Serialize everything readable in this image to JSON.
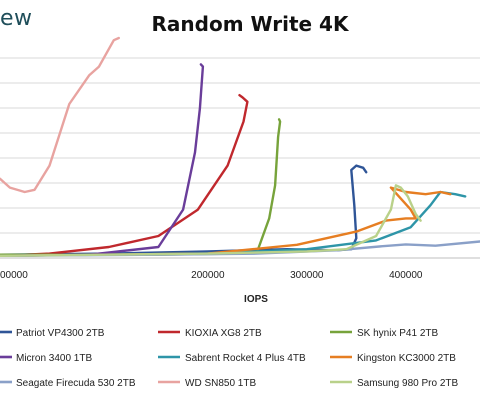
{
  "logo": {
    "text": "ew"
  },
  "chart_data": {
    "type": "line",
    "title": "Random Write 4K",
    "xlabel": "IOPS",
    "ylabel": "",
    "xlim": [
      -10000,
      475000
    ],
    "ylim": [
      0,
      100
    ],
    "xticks": [
      0,
      200000,
      300000,
      400000
    ],
    "xtick_labels": [
      "00000",
      "200000",
      "300000",
      "400000"
    ],
    "grid": true,
    "legend_position": "bottom",
    "series": [
      {
        "name": "Patriot VP4300 2TB",
        "color": "#2f5597",
        "points": [
          [
            -10000,
            1.5
          ],
          [
            100000,
            2
          ],
          [
            200000,
            3
          ],
          [
            280000,
            4
          ],
          [
            330000,
            3.5
          ],
          [
            345000,
            4
          ],
          [
            350000,
            9
          ],
          [
            348000,
            24
          ],
          [
            345000,
            40
          ],
          [
            350000,
            42
          ],
          [
            357000,
            41
          ],
          [
            360000,
            39
          ]
        ]
      },
      {
        "name": "KIOXIA XG8 2TB",
        "color": "#c0282d",
        "points": [
          [
            -10000,
            1
          ],
          [
            40000,
            2
          ],
          [
            100000,
            5
          ],
          [
            150000,
            10
          ],
          [
            190000,
            22
          ],
          [
            220000,
            42
          ],
          [
            236000,
            62
          ],
          [
            240000,
            71
          ],
          [
            235000,
            73
          ],
          [
            232000,
            74
          ]
        ]
      },
      {
        "name": "SK hynix P41 2TB",
        "color": "#77a33b",
        "points": [
          [
            -10000,
            1.5
          ],
          [
            150000,
            1.5
          ],
          [
            230000,
            2
          ],
          [
            250000,
            3
          ],
          [
            262000,
            18
          ],
          [
            268000,
            33
          ],
          [
            271000,
            55
          ],
          [
            273000,
            62
          ],
          [
            272000,
            63
          ]
        ]
      },
      {
        "name": "Micron 3400 1TB",
        "color": "#6a3d9a",
        "points": [
          [
            -10000,
            1
          ],
          [
            80000,
            1.5
          ],
          [
            150000,
            5
          ],
          [
            175000,
            22
          ],
          [
            187000,
            48
          ],
          [
            192000,
            68
          ],
          [
            195000,
            87
          ],
          [
            193000,
            88
          ]
        ]
      },
      {
        "name": "Sabrent Rocket 4 Plus 4TB",
        "color": "#2e95a8",
        "points": [
          [
            -10000,
            1
          ],
          [
            200000,
            2
          ],
          [
            300000,
            4
          ],
          [
            370000,
            8
          ],
          [
            405000,
            14
          ],
          [
            425000,
            24
          ],
          [
            435000,
            30
          ],
          [
            450000,
            29
          ],
          [
            460000,
            28
          ]
        ]
      },
      {
        "name": "Kingston KC3000 2TB",
        "color": "#e67e22",
        "points": [
          [
            -10000,
            1
          ],
          [
            200000,
            2
          ],
          [
            290000,
            6
          ],
          [
            350000,
            12
          ],
          [
            380000,
            17
          ],
          [
            400000,
            18
          ],
          [
            410000,
            18
          ],
          [
            405000,
            22
          ],
          [
            385000,
            32
          ],
          [
            400000,
            30
          ],
          [
            420000,
            29
          ],
          [
            435000,
            30
          ],
          [
            445000,
            29
          ]
        ]
      },
      {
        "name": "Seagate Firecuda 530 2TB",
        "color": "#8aa0c8",
        "points": [
          [
            -10000,
            1
          ],
          [
            150000,
            1.5
          ],
          [
            250000,
            2
          ],
          [
            330000,
            3.5
          ],
          [
            380000,
            5.5
          ],
          [
            400000,
            6.2
          ],
          [
            430000,
            5.6
          ],
          [
            475000,
            7.5
          ]
        ]
      },
      {
        "name": "WD SN850 1TB",
        "color": "#e8a3a0",
        "points": [
          [
            -10000,
            36
          ],
          [
            0,
            32
          ],
          [
            15000,
            30
          ],
          [
            25000,
            31
          ],
          [
            40000,
            42
          ],
          [
            60000,
            70
          ],
          [
            80000,
            83
          ],
          [
            90000,
            87
          ],
          [
            105000,
            99
          ],
          [
            110000,
            100
          ]
        ]
      },
      {
        "name": "Samsung 980 Pro 2TB",
        "color": "#b9d18a",
        "points": [
          [
            -10000,
            1
          ],
          [
            200000,
            2
          ],
          [
            300000,
            3
          ],
          [
            340000,
            4
          ],
          [
            370000,
            10
          ],
          [
            385000,
            22
          ],
          [
            390000,
            33
          ],
          [
            395000,
            32
          ],
          [
            402000,
            28
          ],
          [
            410000,
            20
          ],
          [
            415000,
            17
          ]
        ]
      }
    ]
  }
}
